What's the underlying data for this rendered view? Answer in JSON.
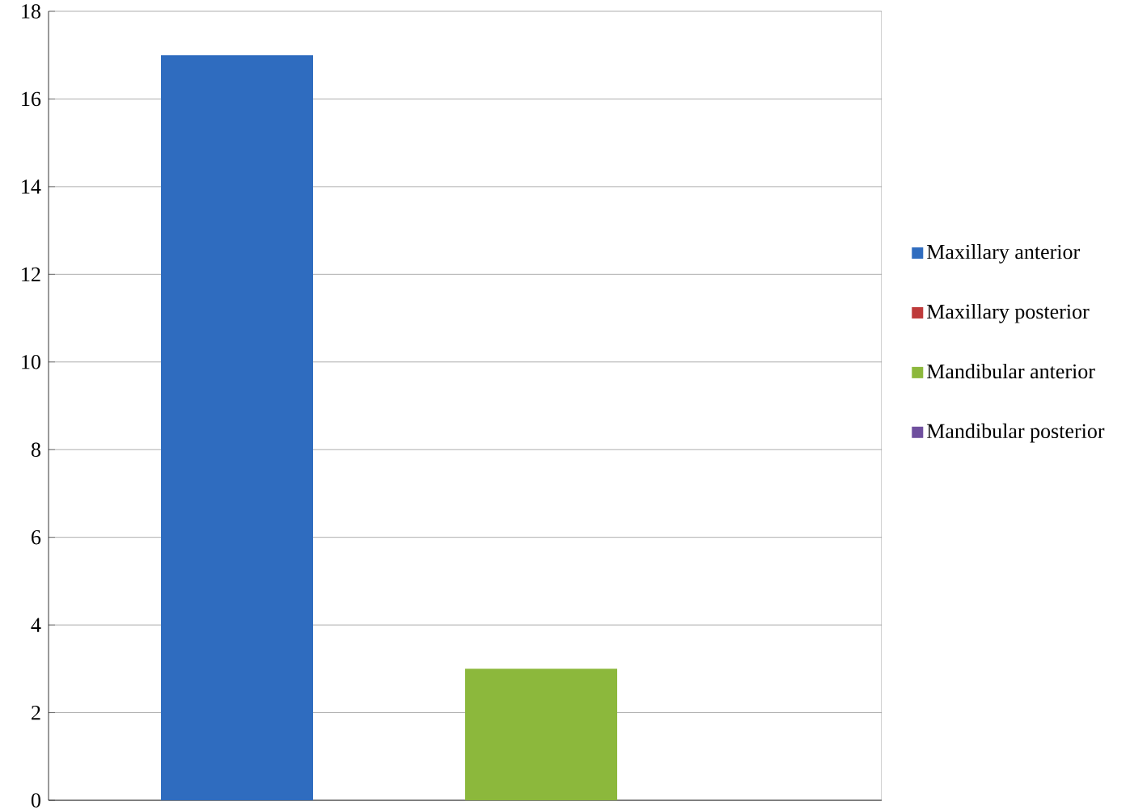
{
  "chart_data": {
    "type": "bar",
    "categories": [
      null
    ],
    "series": [
      {
        "name": "Maxillary anterior",
        "color": "#2f6cbf",
        "values": [
          17
        ]
      },
      {
        "name": "Maxillary posterior",
        "color": "#be3a3a",
        "values": [
          0
        ]
      },
      {
        "name": "Mandibular anterior",
        "color": "#8cb83c",
        "values": [
          3
        ]
      },
      {
        "name": "Mandibular posterior",
        "color": "#6f4f9e",
        "values": [
          0
        ]
      }
    ],
    "ylim": [
      0,
      18
    ],
    "yticks": [
      0,
      2,
      4,
      6,
      8,
      10,
      12,
      14,
      16,
      18
    ],
    "grid": "y",
    "legend": "right",
    "tick_labels": "y"
  }
}
